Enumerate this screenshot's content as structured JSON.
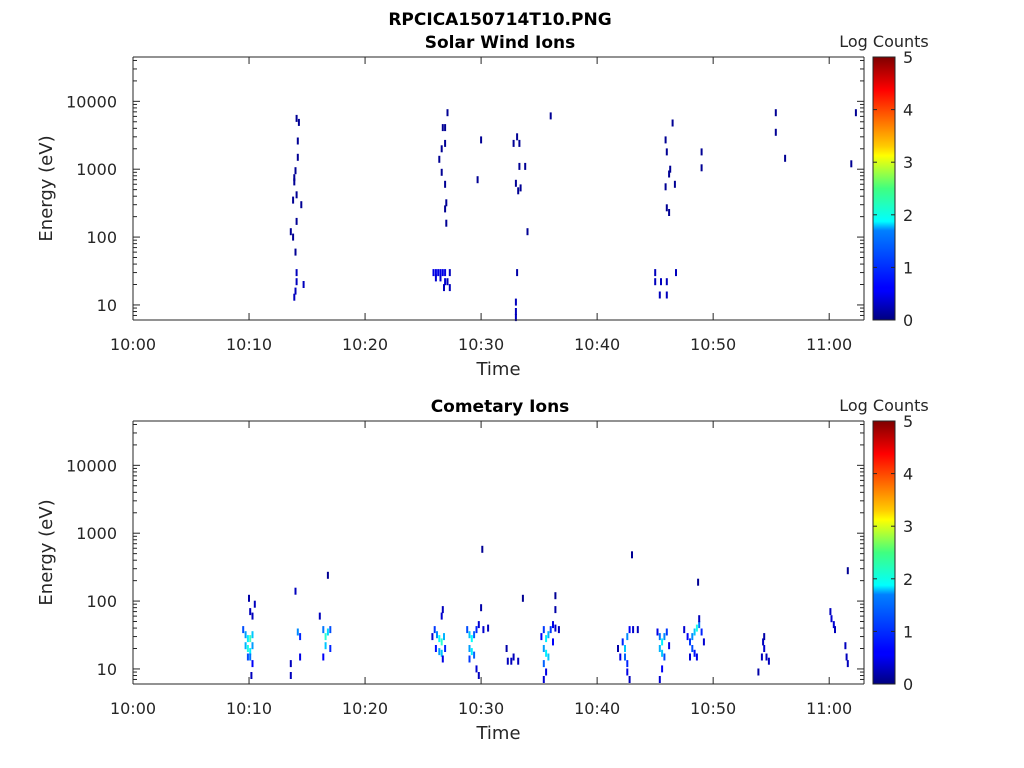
{
  "figure_title": "RPCICA150714T10.PNG",
  "chart_data": [
    {
      "type": "heatmap",
      "title": "Solar Wind Ions",
      "xlabel": "Time",
      "ylabel": "Energy (eV)",
      "x_ticks": [
        "10:00",
        "10:10",
        "10:20",
        "10:30",
        "10:40",
        "10:50",
        "11:00"
      ],
      "y_ticks": [
        "10",
        "100",
        "1000",
        "10000"
      ],
      "y_scale": "log",
      "ylim": [
        6,
        45000
      ],
      "xlim": [
        "10:00",
        "11:03"
      ],
      "colorbar": {
        "label": "Log Counts",
        "range": [
          0,
          5
        ],
        "ticks": [
          "0",
          "1",
          "2",
          "3",
          "4",
          "5"
        ],
        "colormap": "jet"
      },
      "cells": [
        {
          "t": 13.6,
          "e": 120,
          "c": 0.1
        },
        {
          "t": 13.8,
          "e": 100,
          "c": 0.1
        },
        {
          "t": 14.0,
          "e": 60,
          "c": 0.1
        },
        {
          "t": 14.1,
          "e": 5600,
          "c": 0.1
        },
        {
          "t": 14.3,
          "e": 4900,
          "c": 0.1
        },
        {
          "t": 14.2,
          "e": 2600,
          "c": 0.1
        },
        {
          "t": 14.2,
          "e": 1500,
          "c": 0.1
        },
        {
          "t": 14.0,
          "e": 950,
          "c": 0.1
        },
        {
          "t": 13.9,
          "e": 750,
          "c": 0.1
        },
        {
          "t": 13.9,
          "e": 650,
          "c": 0.1
        },
        {
          "t": 14.1,
          "e": 420,
          "c": 0.1
        },
        {
          "t": 13.8,
          "e": 350,
          "c": 0.1
        },
        {
          "t": 14.5,
          "e": 300,
          "c": 0.1
        },
        {
          "t": 14.1,
          "e": 170,
          "c": 0.1
        },
        {
          "t": 14.1,
          "e": 30,
          "c": 0.3
        },
        {
          "t": 14.1,
          "e": 22,
          "c": 0.3
        },
        {
          "t": 14.0,
          "e": 16,
          "c": 0.3
        },
        {
          "t": 13.9,
          "e": 13,
          "c": 0.3
        },
        {
          "t": 14.7,
          "e": 20,
          "c": 0.3
        },
        {
          "t": 27.1,
          "e": 6800,
          "c": 0.1
        },
        {
          "t": 26.7,
          "e": 4100,
          "c": 0.1
        },
        {
          "t": 26.9,
          "e": 4100,
          "c": 0.1
        },
        {
          "t": 26.9,
          "e": 2400,
          "c": 0.1
        },
        {
          "t": 26.6,
          "e": 2000,
          "c": 0.1
        },
        {
          "t": 26.4,
          "e": 1400,
          "c": 0.1
        },
        {
          "t": 26.6,
          "e": 900,
          "c": 0.1
        },
        {
          "t": 26.9,
          "e": 600,
          "c": 0.1
        },
        {
          "t": 27.0,
          "e": 320,
          "c": 0.1
        },
        {
          "t": 26.9,
          "e": 260,
          "c": 0.1
        },
        {
          "t": 27.0,
          "e": 160,
          "c": 0.1
        },
        {
          "t": 25.9,
          "e": 30,
          "c": 0.5
        },
        {
          "t": 26.1,
          "e": 30,
          "c": 0.5
        },
        {
          "t": 26.3,
          "e": 30,
          "c": 0.5
        },
        {
          "t": 26.5,
          "e": 30,
          "c": 0.5
        },
        {
          "t": 26.7,
          "e": 30,
          "c": 0.5
        },
        {
          "t": 26.9,
          "e": 30,
          "c": 0.5
        },
        {
          "t": 27.3,
          "e": 30,
          "c": 0.3
        },
        {
          "t": 26.1,
          "e": 25,
          "c": 0.4
        },
        {
          "t": 26.5,
          "e": 25,
          "c": 0.4
        },
        {
          "t": 26.9,
          "e": 22,
          "c": 0.4
        },
        {
          "t": 27.1,
          "e": 22,
          "c": 0.3
        },
        {
          "t": 26.8,
          "e": 18,
          "c": 0.3
        },
        {
          "t": 27.3,
          "e": 18,
          "c": 0.3
        },
        {
          "t": 30.0,
          "e": 2700,
          "c": 0.1
        },
        {
          "t": 29.7,
          "e": 700,
          "c": 0.1
        },
        {
          "t": 33.1,
          "e": 3000,
          "c": 0.1
        },
        {
          "t": 32.8,
          "e": 2400,
          "c": 0.1
        },
        {
          "t": 33.3,
          "e": 2400,
          "c": 0.1
        },
        {
          "t": 33.3,
          "e": 1100,
          "c": 0.1
        },
        {
          "t": 33.8,
          "e": 1100,
          "c": 0.1
        },
        {
          "t": 33.0,
          "e": 620,
          "c": 0.1
        },
        {
          "t": 33.4,
          "e": 530,
          "c": 0.1
        },
        {
          "t": 33.2,
          "e": 480,
          "c": 0.1
        },
        {
          "t": 34.0,
          "e": 120,
          "c": 0.1
        },
        {
          "t": 33.1,
          "e": 30,
          "c": 0.2
        },
        {
          "t": 33.0,
          "e": 11,
          "c": 0.3
        },
        {
          "t": 33.0,
          "e": 8,
          "c": 0.3
        },
        {
          "t": 33.0,
          "e": 6.5,
          "c": 0.3
        },
        {
          "t": 36.0,
          "e": 6100,
          "c": 0.1
        },
        {
          "t": 46.5,
          "e": 4800,
          "c": 0.1
        },
        {
          "t": 45.9,
          "e": 2700,
          "c": 0.1
        },
        {
          "t": 46.0,
          "e": 1800,
          "c": 0.1
        },
        {
          "t": 46.3,
          "e": 1000,
          "c": 0.1
        },
        {
          "t": 46.2,
          "e": 850,
          "c": 0.1
        },
        {
          "t": 46.7,
          "e": 600,
          "c": 0.1
        },
        {
          "t": 45.9,
          "e": 550,
          "c": 0.1
        },
        {
          "t": 46.0,
          "e": 270,
          "c": 0.1
        },
        {
          "t": 46.2,
          "e": 230,
          "c": 0.1
        },
        {
          "t": 45.0,
          "e": 30,
          "c": 0.3
        },
        {
          "t": 45.0,
          "e": 22,
          "c": 0.3
        },
        {
          "t": 45.5,
          "e": 22,
          "c": 0.3
        },
        {
          "t": 46.0,
          "e": 22,
          "c": 0.3
        },
        {
          "t": 46.8,
          "e": 30,
          "c": 0.3
        },
        {
          "t": 45.4,
          "e": 14,
          "c": 0.3
        },
        {
          "t": 46.0,
          "e": 14,
          "c": 0.3
        },
        {
          "t": 49.0,
          "e": 1800,
          "c": 0.1
        },
        {
          "t": 49.0,
          "e": 1050,
          "c": 0.1
        },
        {
          "t": 55.4,
          "e": 6800,
          "c": 0.1
        },
        {
          "t": 55.4,
          "e": 3500,
          "c": 0.1
        },
        {
          "t": 56.2,
          "e": 1450,
          "c": 0.1
        },
        {
          "t": 61.9,
          "e": 1200,
          "c": 0.1
        },
        {
          "t": 62.3,
          "e": 6800,
          "c": 0.1
        }
      ]
    },
    {
      "type": "heatmap",
      "title": "Cometary Ions",
      "xlabel": "Time",
      "ylabel": "Energy (eV)",
      "x_ticks": [
        "10:00",
        "10:10",
        "10:20",
        "10:30",
        "10:40",
        "10:50",
        "11:00"
      ],
      "y_ticks": [
        "10",
        "100",
        "1000",
        "10000"
      ],
      "y_scale": "log",
      "ylim": [
        6,
        45000
      ],
      "xlim": [
        "10:00",
        "11:03"
      ],
      "colorbar": {
        "label": "Log Counts",
        "range": [
          0,
          5
        ],
        "ticks": [
          "0",
          "1",
          "2",
          "3",
          "4",
          "5"
        ],
        "colormap": "jet"
      },
      "cells": [
        {
          "t": 9.5,
          "e": 38,
          "c": 1.0
        },
        {
          "t": 9.7,
          "e": 32,
          "c": 1.4
        },
        {
          "t": 9.9,
          "e": 28,
          "c": 1.8
        },
        {
          "t": 10.1,
          "e": 28,
          "c": 2.2
        },
        {
          "t": 10.3,
          "e": 32,
          "c": 1.6
        },
        {
          "t": 9.7,
          "e": 22,
          "c": 1.5
        },
        {
          "t": 9.9,
          "e": 20,
          "c": 2.0
        },
        {
          "t": 10.1,
          "e": 18,
          "c": 1.8
        },
        {
          "t": 10.3,
          "e": 22,
          "c": 1.4
        },
        {
          "t": 9.9,
          "e": 15,
          "c": 1.0
        },
        {
          "t": 10.1,
          "e": 15,
          "c": 1.2
        },
        {
          "t": 10.3,
          "e": 12,
          "c": 0.6
        },
        {
          "t": 10.3,
          "e": 60,
          "c": 0.3
        },
        {
          "t": 10.1,
          "e": 70,
          "c": 0.3
        },
        {
          "t": 10.5,
          "e": 90,
          "c": 0.3
        },
        {
          "t": 10.0,
          "e": 110,
          "c": 0.2
        },
        {
          "t": 10.2,
          "e": 8,
          "c": 0.3
        },
        {
          "t": 13.6,
          "e": 12,
          "c": 0.3
        },
        {
          "t": 13.6,
          "e": 8,
          "c": 0.3
        },
        {
          "t": 14.0,
          "e": 140,
          "c": 0.3
        },
        {
          "t": 14.2,
          "e": 35,
          "c": 1.3
        },
        {
          "t": 14.4,
          "e": 30,
          "c": 0.8
        },
        {
          "t": 14.4,
          "e": 15,
          "c": 0.5
        },
        {
          "t": 16.1,
          "e": 60,
          "c": 0.3
        },
        {
          "t": 16.4,
          "e": 38,
          "c": 1.2
        },
        {
          "t": 16.6,
          "e": 30,
          "c": 2.1
        },
        {
          "t": 16.8,
          "e": 35,
          "c": 1.7
        },
        {
          "t": 17.0,
          "e": 38,
          "c": 1.0
        },
        {
          "t": 16.6,
          "e": 22,
          "c": 1.6
        },
        {
          "t": 16.4,
          "e": 15,
          "c": 0.6
        },
        {
          "t": 17.0,
          "e": 20,
          "c": 0.8
        },
        {
          "t": 16.8,
          "e": 240,
          "c": 0.1
        },
        {
          "t": 25.8,
          "e": 30,
          "c": 0.4
        },
        {
          "t": 26.0,
          "e": 38,
          "c": 0.9
        },
        {
          "t": 26.2,
          "e": 32,
          "c": 1.3
        },
        {
          "t": 26.4,
          "e": 28,
          "c": 1.9
        },
        {
          "t": 26.6,
          "e": 25,
          "c": 2.1
        },
        {
          "t": 26.8,
          "e": 30,
          "c": 1.5
        },
        {
          "t": 26.1,
          "e": 20,
          "c": 0.7
        },
        {
          "t": 26.4,
          "e": 18,
          "c": 1.4
        },
        {
          "t": 26.6,
          "e": 17,
          "c": 1.6
        },
        {
          "t": 26.9,
          "e": 20,
          "c": 0.8
        },
        {
          "t": 26.6,
          "e": 60,
          "c": 0.4
        },
        {
          "t": 26.7,
          "e": 75,
          "c": 0.3
        },
        {
          "t": 26.7,
          "e": 14,
          "c": 0.5
        },
        {
          "t": 28.8,
          "e": 38,
          "c": 1.0
        },
        {
          "t": 29.0,
          "e": 32,
          "c": 1.6
        },
        {
          "t": 29.2,
          "e": 28,
          "c": 1.9
        },
        {
          "t": 29.4,
          "e": 32,
          "c": 1.1
        },
        {
          "t": 29.6,
          "e": 38,
          "c": 0.8
        },
        {
          "t": 29.8,
          "e": 45,
          "c": 0.4
        },
        {
          "t": 30.2,
          "e": 38,
          "c": 0.4
        },
        {
          "t": 30.6,
          "e": 40,
          "c": 0.3
        },
        {
          "t": 29.0,
          "e": 20,
          "c": 1.4
        },
        {
          "t": 29.2,
          "e": 18,
          "c": 1.8
        },
        {
          "t": 29.4,
          "e": 16,
          "c": 1.1
        },
        {
          "t": 29.0,
          "e": 14,
          "c": 0.9
        },
        {
          "t": 29.6,
          "e": 10,
          "c": 0.4
        },
        {
          "t": 29.8,
          "e": 8,
          "c": 0.3
        },
        {
          "t": 30.0,
          "e": 80,
          "c": 0.2
        },
        {
          "t": 30.1,
          "e": 580,
          "c": 0.1
        },
        {
          "t": 32.2,
          "e": 20,
          "c": 0.2
        },
        {
          "t": 32.3,
          "e": 13,
          "c": 0.3
        },
        {
          "t": 32.6,
          "e": 13,
          "c": 0.3
        },
        {
          "t": 32.8,
          "e": 15,
          "c": 0.3
        },
        {
          "t": 33.2,
          "e": 13,
          "c": 0.3
        },
        {
          "t": 33.6,
          "e": 110,
          "c": 0.1
        },
        {
          "t": 35.2,
          "e": 30,
          "c": 0.6
        },
        {
          "t": 35.4,
          "e": 38,
          "c": 0.9
        },
        {
          "t": 35.6,
          "e": 28,
          "c": 1.8
        },
        {
          "t": 35.8,
          "e": 32,
          "c": 1.5
        },
        {
          "t": 36.0,
          "e": 38,
          "c": 0.9
        },
        {
          "t": 36.2,
          "e": 45,
          "c": 0.5
        },
        {
          "t": 36.4,
          "e": 40,
          "c": 0.4
        },
        {
          "t": 36.7,
          "e": 38,
          "c": 0.3
        },
        {
          "t": 35.4,
          "e": 20,
          "c": 1.4
        },
        {
          "t": 35.6,
          "e": 17,
          "c": 1.8
        },
        {
          "t": 35.8,
          "e": 15,
          "c": 1.6
        },
        {
          "t": 35.4,
          "e": 12,
          "c": 1.1
        },
        {
          "t": 35.6,
          "e": 9,
          "c": 0.5
        },
        {
          "t": 35.4,
          "e": 7,
          "c": 0.4
        },
        {
          "t": 36.2,
          "e": 25,
          "c": 0.6
        },
        {
          "t": 36.4,
          "e": 75,
          "c": 0.2
        },
        {
          "t": 36.4,
          "e": 120,
          "c": 0.1
        },
        {
          "t": 41.8,
          "e": 20,
          "c": 0.2
        },
        {
          "t": 42.0,
          "e": 15,
          "c": 0.5
        },
        {
          "t": 42.2,
          "e": 25,
          "c": 0.8
        },
        {
          "t": 42.4,
          "e": 20,
          "c": 1.6
        },
        {
          "t": 42.6,
          "e": 30,
          "c": 1.3
        },
        {
          "t": 42.8,
          "e": 38,
          "c": 0.6
        },
        {
          "t": 43.1,
          "e": 38,
          "c": 0.4
        },
        {
          "t": 43.5,
          "e": 38,
          "c": 0.3
        },
        {
          "t": 42.4,
          "e": 15,
          "c": 1.1
        },
        {
          "t": 42.6,
          "e": 12,
          "c": 0.8
        },
        {
          "t": 42.6,
          "e": 9,
          "c": 0.5
        },
        {
          "t": 42.8,
          "e": 7,
          "c": 0.3
        },
        {
          "t": 43.0,
          "e": 480,
          "c": 0.1
        },
        {
          "t": 45.2,
          "e": 35,
          "c": 0.5
        },
        {
          "t": 45.4,
          "e": 30,
          "c": 1.2
        },
        {
          "t": 45.6,
          "e": 25,
          "c": 1.8
        },
        {
          "t": 45.8,
          "e": 30,
          "c": 1.3
        },
        {
          "t": 46.0,
          "e": 35,
          "c": 0.9
        },
        {
          "t": 45.4,
          "e": 20,
          "c": 1.5
        },
        {
          "t": 45.6,
          "e": 17,
          "c": 1.6
        },
        {
          "t": 45.8,
          "e": 15,
          "c": 1.0
        },
        {
          "t": 45.6,
          "e": 10,
          "c": 0.6
        },
        {
          "t": 45.4,
          "e": 7,
          "c": 0.4
        },
        {
          "t": 46.2,
          "e": 22,
          "c": 0.5
        },
        {
          "t": 47.5,
          "e": 38,
          "c": 0.4
        },
        {
          "t": 47.8,
          "e": 30,
          "c": 0.6
        },
        {
          "t": 48.0,
          "e": 25,
          "c": 0.9
        },
        {
          "t": 48.2,
          "e": 30,
          "c": 1.3
        },
        {
          "t": 48.4,
          "e": 35,
          "c": 1.6
        },
        {
          "t": 48.6,
          "e": 40,
          "c": 2.0
        },
        {
          "t": 48.8,
          "e": 45,
          "c": 1.2
        },
        {
          "t": 49.0,
          "e": 35,
          "c": 0.8
        },
        {
          "t": 48.2,
          "e": 20,
          "c": 1.0
        },
        {
          "t": 48.4,
          "e": 17,
          "c": 0.7
        },
        {
          "t": 48.6,
          "e": 15,
          "c": 0.5
        },
        {
          "t": 48.0,
          "e": 15,
          "c": 0.4
        },
        {
          "t": 48.8,
          "e": 55,
          "c": 0.3
        },
        {
          "t": 49.2,
          "e": 25,
          "c": 0.4
        },
        {
          "t": 48.7,
          "e": 190,
          "c": 0.1
        },
        {
          "t": 53.9,
          "e": 9,
          "c": 0.2
        },
        {
          "t": 54.2,
          "e": 15,
          "c": 0.3
        },
        {
          "t": 54.4,
          "e": 20,
          "c": 0.4
        },
        {
          "t": 54.6,
          "e": 15,
          "c": 0.3
        },
        {
          "t": 54.8,
          "e": 13,
          "c": 0.3
        },
        {
          "t": 54.3,
          "e": 25,
          "c": 0.3
        },
        {
          "t": 54.4,
          "e": 30,
          "c": 0.2
        },
        {
          "t": 60.1,
          "e": 70,
          "c": 0.3
        },
        {
          "t": 60.2,
          "e": 55,
          "c": 0.4
        },
        {
          "t": 60.4,
          "e": 45,
          "c": 0.4
        },
        {
          "t": 60.5,
          "e": 38,
          "c": 0.3
        },
        {
          "t": 61.4,
          "e": 22,
          "c": 0.3
        },
        {
          "t": 61.5,
          "e": 15,
          "c": 0.3
        },
        {
          "t": 61.6,
          "e": 12,
          "c": 0.3
        },
        {
          "t": 61.6,
          "e": 280,
          "c": 0.1
        }
      ]
    }
  ]
}
